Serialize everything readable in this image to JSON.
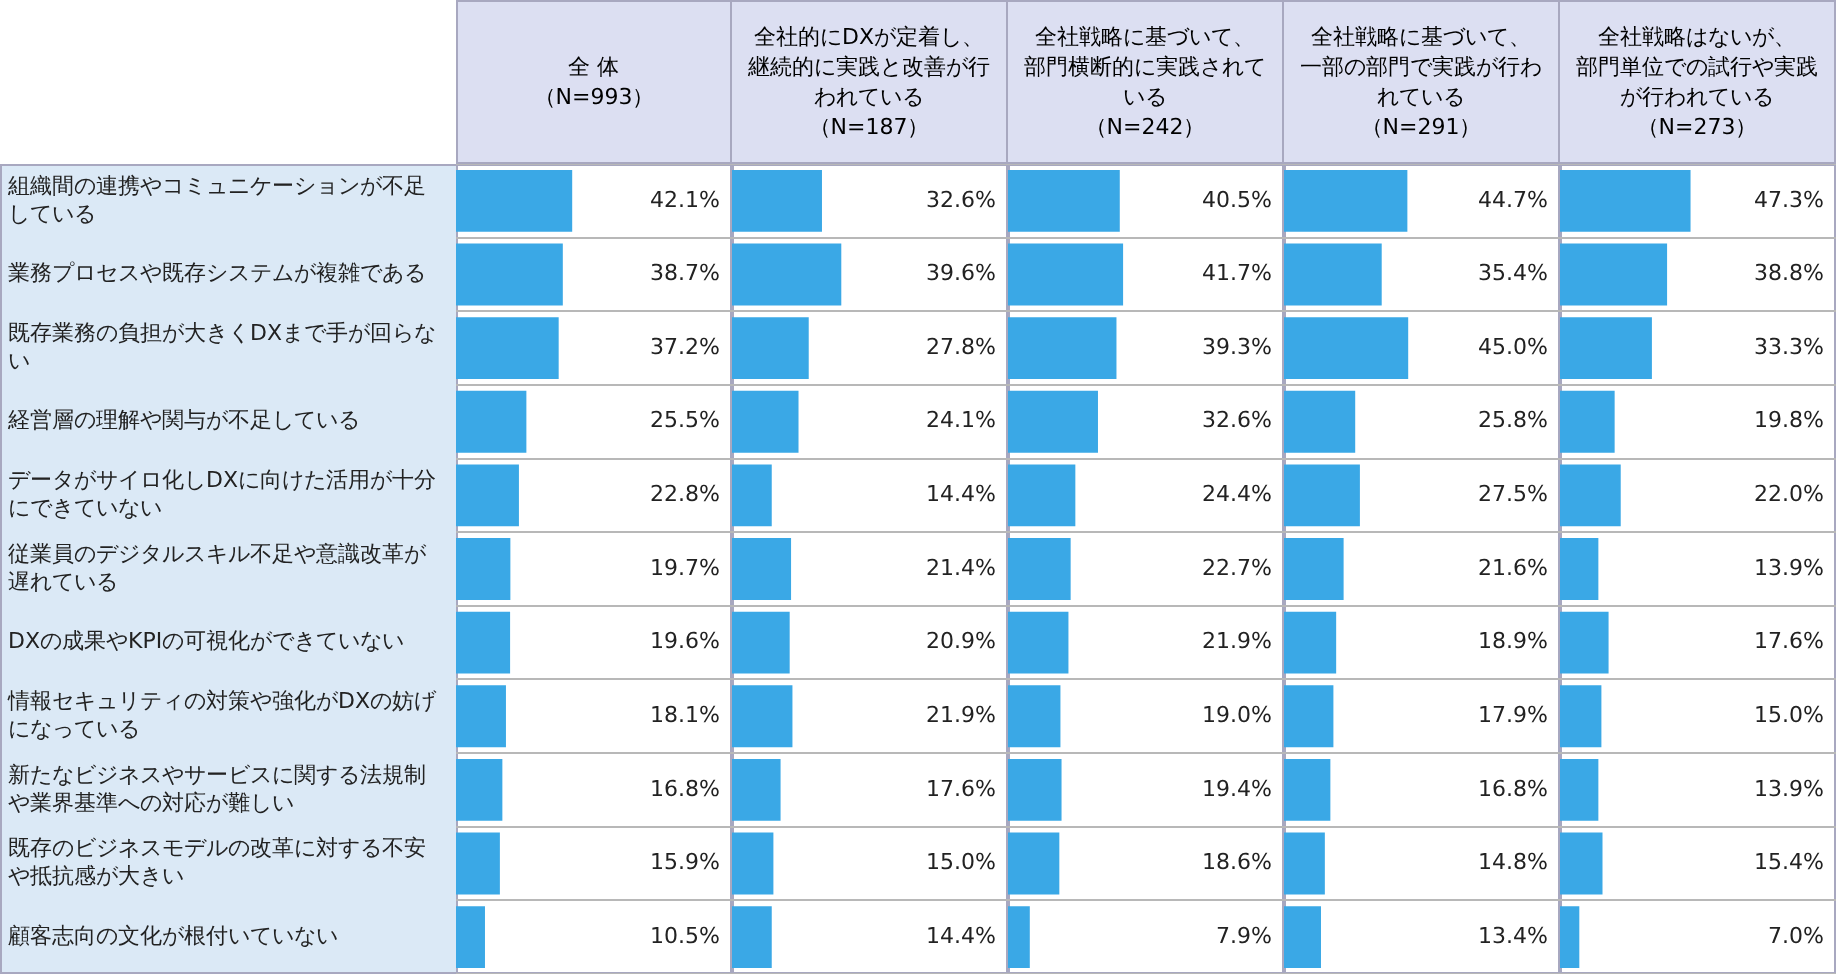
{
  "chart_data": [
    {
      "type": "bar",
      "orientation": "horizontal",
      "title": "全 体（N=993）",
      "categories": [
        "組織間の連携やコミュニケーションが不足している",
        "業務プロセスや既存システムが複雑である",
        "既存業務の負担が大きくDXまで手が回らない",
        "経営層の理解や関与が不足している",
        "データがサイロ化しDXに向けた活用が十分にできていない",
        "従業員のデジタルスキル不足や意識改革が遅れている",
        "DXの成果やKPIの可視化ができていない",
        "情報セキュリティの対策や強化がDXの妨げになっている",
        "新たなビジネスやサービスに関する法規制や業界基準への対応が難しい",
        "既存のビジネスモデルの改革に対する不安や抵抗感が大きい",
        "顧客志向の文化が根付いていない"
      ],
      "color": "#3aa8e6",
      "xlim": [
        0,
        100
      ],
      "grid": "y",
      "tick_labels": "y",
      "values": [
        42.1,
        38.7,
        37.2,
        25.5,
        22.8,
        19.7,
        19.6,
        18.1,
        16.8,
        15.9,
        10.5
      ],
      "value_labels": [
        "42.1%",
        "38.7%",
        "37.2%",
        "25.5%",
        "22.8%",
        "19.7%",
        "19.6%",
        "18.1%",
        "16.8%",
        "15.9%",
        "10.5%"
      ]
    },
    {
      "type": "bar",
      "orientation": "horizontal",
      "title": "全社的にDXが定着し、継続的に実践と改善が行われている（N=187）",
      "categories": [
        null,
        null,
        null,
        null,
        null,
        null,
        null,
        null,
        null,
        null,
        null
      ],
      "color": "#3aa8e6",
      "xlim": [
        0,
        100
      ],
      "grid": "y",
      "tick_labels": false,
      "values": [
        32.6,
        39.6,
        27.8,
        24.1,
        14.4,
        21.4,
        20.9,
        21.9,
        17.6,
        15.0,
        14.4
      ],
      "value_labels": [
        "32.6%",
        "39.6%",
        "27.8%",
        "24.1%",
        "14.4%",
        "21.4%",
        "20.9%",
        "21.9%",
        "17.6%",
        "15.0%",
        "14.4%"
      ]
    },
    {
      "type": "bar",
      "orientation": "horizontal",
      "title": "全社戦略に基づいて、部門横断的に実践されている（N=242）",
      "categories": [
        null,
        null,
        null,
        null,
        null,
        null,
        null,
        null,
        null,
        null,
        null
      ],
      "color": "#3aa8e6",
      "xlim": [
        0,
        100
      ],
      "grid": "y",
      "tick_labels": false,
      "values": [
        40.5,
        41.7,
        39.3,
        32.6,
        24.4,
        22.7,
        21.9,
        19.0,
        19.4,
        18.6,
        7.9
      ],
      "value_labels": [
        "40.5%",
        "41.7%",
        "39.3%",
        "32.6%",
        "24.4%",
        "22.7%",
        "21.9%",
        "19.0%",
        "19.4%",
        "18.6%",
        "7.9%"
      ]
    },
    {
      "type": "bar",
      "orientation": "horizontal",
      "title": "全社戦略に基づいて、一部の部門で実践が行われている（N=291）",
      "categories": [
        null,
        null,
        null,
        null,
        null,
        null,
        null,
        null,
        null,
        null,
        null
      ],
      "color": "#3aa8e6",
      "xlim": [
        0,
        100
      ],
      "grid": "y",
      "tick_labels": false,
      "values": [
        44.7,
        35.4,
        45.0,
        25.8,
        27.5,
        21.6,
        18.9,
        17.9,
        16.8,
        14.8,
        13.4
      ],
      "value_labels": [
        "44.7%",
        "35.4%",
        "45.0%",
        "25.8%",
        "27.5%",
        "21.6%",
        "18.9%",
        "17.9%",
        "16.8%",
        "14.8%",
        "13.4%"
      ]
    },
    {
      "type": "bar",
      "orientation": "horizontal",
      "title": "全社戦略はないが、部門単位での試行や実践が行われている（N=273）",
      "categories": [
        null,
        null,
        null,
        null,
        null,
        null,
        null,
        null,
        null,
        null,
        null
      ],
      "color": "#3aa8e6",
      "xlim": [
        0,
        100
      ],
      "grid": "y",
      "tick_labels": false,
      "values": [
        47.3,
        38.8,
        33.3,
        19.8,
        22.0,
        13.9,
        17.6,
        15.0,
        13.9,
        15.4,
        7.0
      ],
      "value_labels": [
        "47.3%",
        "38.8%",
        "33.3%",
        "19.8%",
        "22.0%",
        "13.9%",
        "17.6%",
        "15.0%",
        "13.9%",
        "15.4%",
        "7.0%"
      ]
    }
  ]
}
